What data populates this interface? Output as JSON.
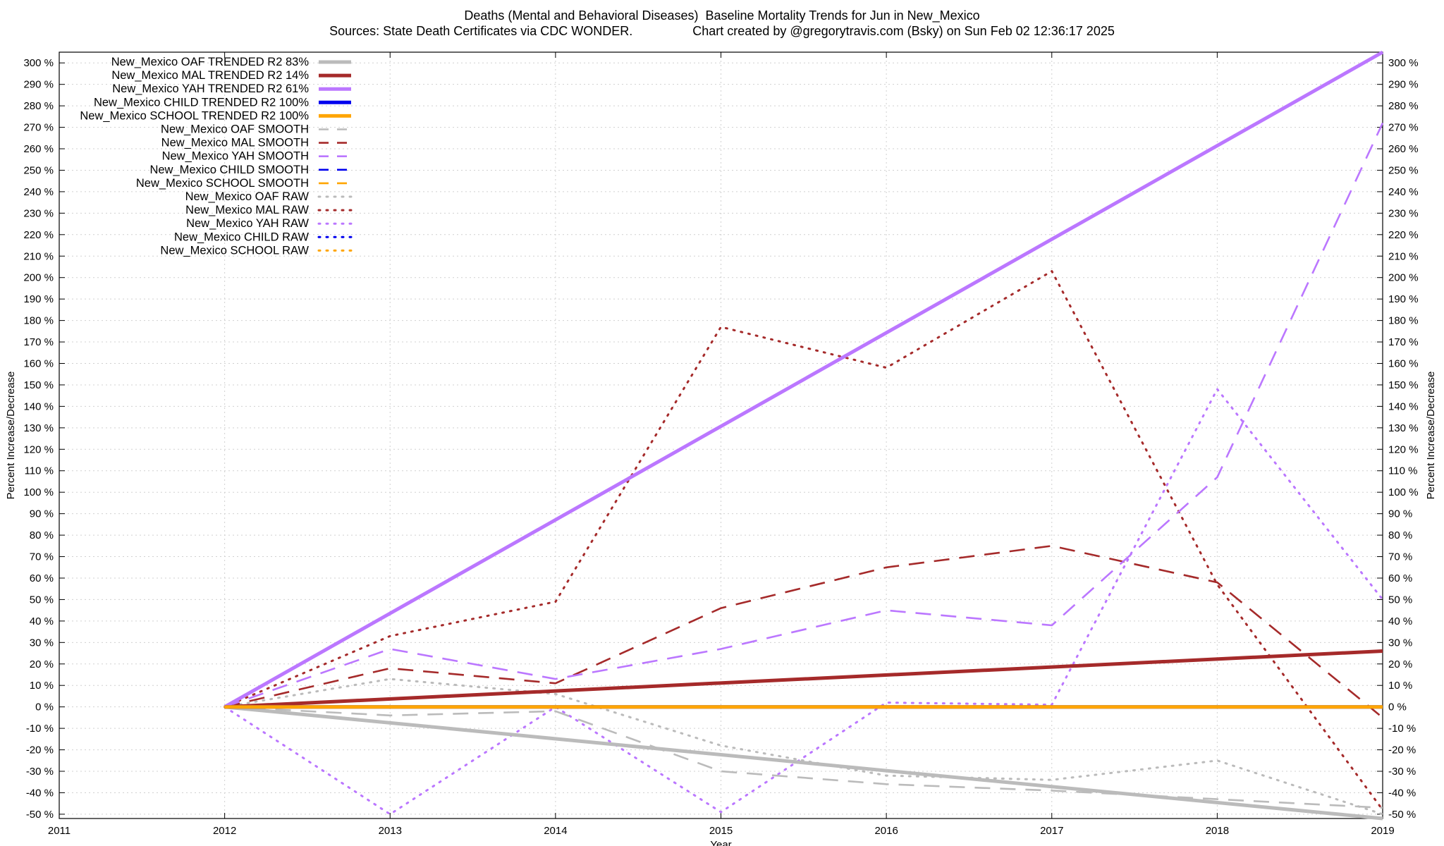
{
  "chart_data": {
    "type": "line",
    "title": "Deaths (Mental and Behavioral Diseases)  Baseline Mortality Trends for Jun in New_Mexico",
    "subtitle": "Sources: State Death Certificates via CDC WONDER.                 Chart created by @gregorytravis.com (Bsky) on Sun Feb 02 12:36:17 2025",
    "xlabel": "Year",
    "ylabel": "Percent Increase/Decrease",
    "y2label": "Percent Increase/Decrease",
    "xlim": [
      2011,
      2019
    ],
    "ylim": [
      -52,
      305
    ],
    "x_ticks": [
      2011,
      2012,
      2013,
      2014,
      2015,
      2016,
      2017,
      2018,
      2019
    ],
    "y_ticks": [
      -50,
      -40,
      -30,
      -20,
      -10,
      0,
      10,
      20,
      30,
      40,
      50,
      60,
      70,
      80,
      90,
      100,
      110,
      120,
      130,
      140,
      150,
      160,
      170,
      180,
      190,
      200,
      210,
      220,
      230,
      240,
      250,
      260,
      270,
      280,
      290,
      300
    ],
    "y_tick_suffix": " %",
    "grid": true,
    "legend_position": "top-left",
    "series": [
      {
        "name": "New_Mexico OAF TRENDED R2  83%",
        "style": "trended",
        "color": "#bbbbbb",
        "x": [
          2012,
          2019
        ],
        "y": [
          0,
          -52
        ]
      },
      {
        "name": "New_Mexico MAL TRENDED R2  14%",
        "style": "trended",
        "color": "#a52a2a",
        "x": [
          2012,
          2019
        ],
        "y": [
          0,
          26
        ]
      },
      {
        "name": "New_Mexico YAH TRENDED R2  61%",
        "style": "trended",
        "color": "#bb77ff",
        "x": [
          2012,
          2019
        ],
        "y": [
          0,
          305
        ]
      },
      {
        "name": "New_Mexico CHILD TRENDED R2 100%",
        "style": "trended",
        "color": "#0000ee",
        "x": [
          2012,
          2019
        ],
        "y": [
          0,
          0
        ]
      },
      {
        "name": "New_Mexico SCHOOL TRENDED R2 100%",
        "style": "trended",
        "color": "#ffa500",
        "x": [
          2012,
          2019
        ],
        "y": [
          0,
          0
        ]
      },
      {
        "name": "New_Mexico OAF SMOOTH",
        "style": "smooth",
        "color": "#bbbbbb",
        "x": [
          2012,
          2013,
          2014,
          2015,
          2016,
          2017,
          2018,
          2019
        ],
        "y": [
          0,
          -4,
          -2,
          -30,
          -36,
          -39,
          -43,
          -47
        ]
      },
      {
        "name": "New_Mexico MAL SMOOTH",
        "style": "smooth",
        "color": "#a52a2a",
        "x": [
          2012,
          2013,
          2014,
          2015,
          2016,
          2017,
          2018,
          2019
        ],
        "y": [
          0,
          18,
          11,
          46,
          65,
          75,
          58,
          -5
        ]
      },
      {
        "name": "New_Mexico YAH SMOOTH",
        "style": "smooth",
        "color": "#bb77ff",
        "x": [
          2012,
          2013,
          2014,
          2015,
          2016,
          2017,
          2018,
          2019
        ],
        "y": [
          0,
          27,
          13,
          27,
          45,
          38,
          107,
          272
        ]
      },
      {
        "name": "New_Mexico CHILD SMOOTH",
        "style": "smooth",
        "color": "#0000ee",
        "x": [
          2012,
          2019
        ],
        "y": [
          0,
          0
        ]
      },
      {
        "name": "New_Mexico SCHOOL SMOOTH",
        "style": "smooth",
        "color": "#ffa500",
        "x": [
          2012,
          2019
        ],
        "y": [
          0,
          0
        ]
      },
      {
        "name": "New_Mexico OAF RAW",
        "style": "raw",
        "color": "#bbbbbb",
        "x": [
          2012,
          2013,
          2014,
          2015,
          2016,
          2017,
          2018,
          2019
        ],
        "y": [
          0,
          13,
          6,
          -18,
          -32,
          -34,
          -25,
          -50
        ]
      },
      {
        "name": "New_Mexico MAL RAW",
        "style": "raw",
        "color": "#a52a2a",
        "x": [
          2012,
          2013,
          2014,
          2015,
          2016,
          2017,
          2018,
          2019
        ],
        "y": [
          0,
          33,
          49,
          177,
          158,
          203,
          57,
          -48
        ]
      },
      {
        "name": "New_Mexico YAH RAW",
        "style": "raw",
        "color": "#bb77ff",
        "x": [
          2012,
          2013,
          2014,
          2015,
          2016,
          2017,
          2018,
          2019
        ],
        "y": [
          0,
          -50,
          0,
          -49,
          2,
          1,
          148,
          50
        ]
      },
      {
        "name": "New_Mexico CHILD RAW",
        "style": "raw",
        "color": "#0000ee",
        "x": [
          2012,
          2019
        ],
        "y": [
          0,
          0
        ]
      },
      {
        "name": "New_Mexico SCHOOL RAW",
        "style": "raw",
        "color": "#ffa500",
        "x": [
          2012,
          2019
        ],
        "y": [
          0,
          0
        ]
      }
    ]
  }
}
